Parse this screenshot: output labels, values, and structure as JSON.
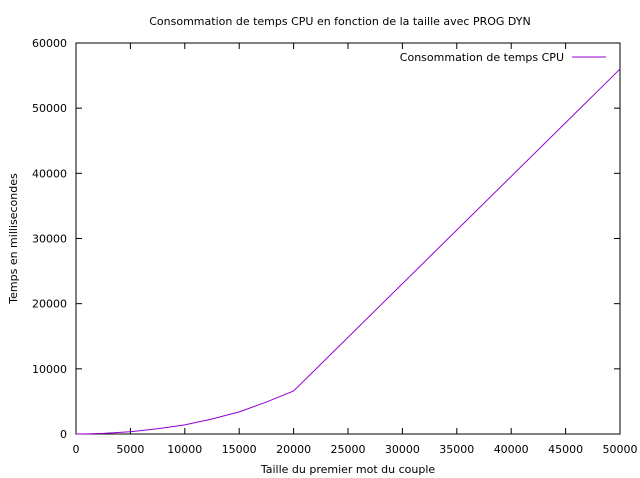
{
  "chart_data": {
    "type": "line",
    "title": "Consommation de temps CPU en fonction de la taille avec PROG DYN",
    "xlabel": "Taille du premier mot du couple",
    "ylabel": "Temps en millisecondes",
    "xlim": [
      0,
      50000
    ],
    "ylim": [
      0,
      60000
    ],
    "xticks": [
      0,
      5000,
      10000,
      15000,
      20000,
      25000,
      30000,
      35000,
      40000,
      45000,
      50000
    ],
    "yticks": [
      0,
      10000,
      20000,
      30000,
      40000,
      50000,
      60000
    ],
    "grid": false,
    "legend_position": "top-right",
    "series": [
      {
        "name": "Consommation de temps CPU",
        "color": "#9400d3",
        "x": [
          0,
          1000,
          2500,
          5000,
          7500,
          10000,
          12500,
          15000,
          17500,
          20000,
          50000
        ],
        "y": [
          0,
          20,
          100,
          350,
          800,
          1400,
          2300,
          3400,
          4900,
          6600,
          56000
        ]
      }
    ]
  }
}
